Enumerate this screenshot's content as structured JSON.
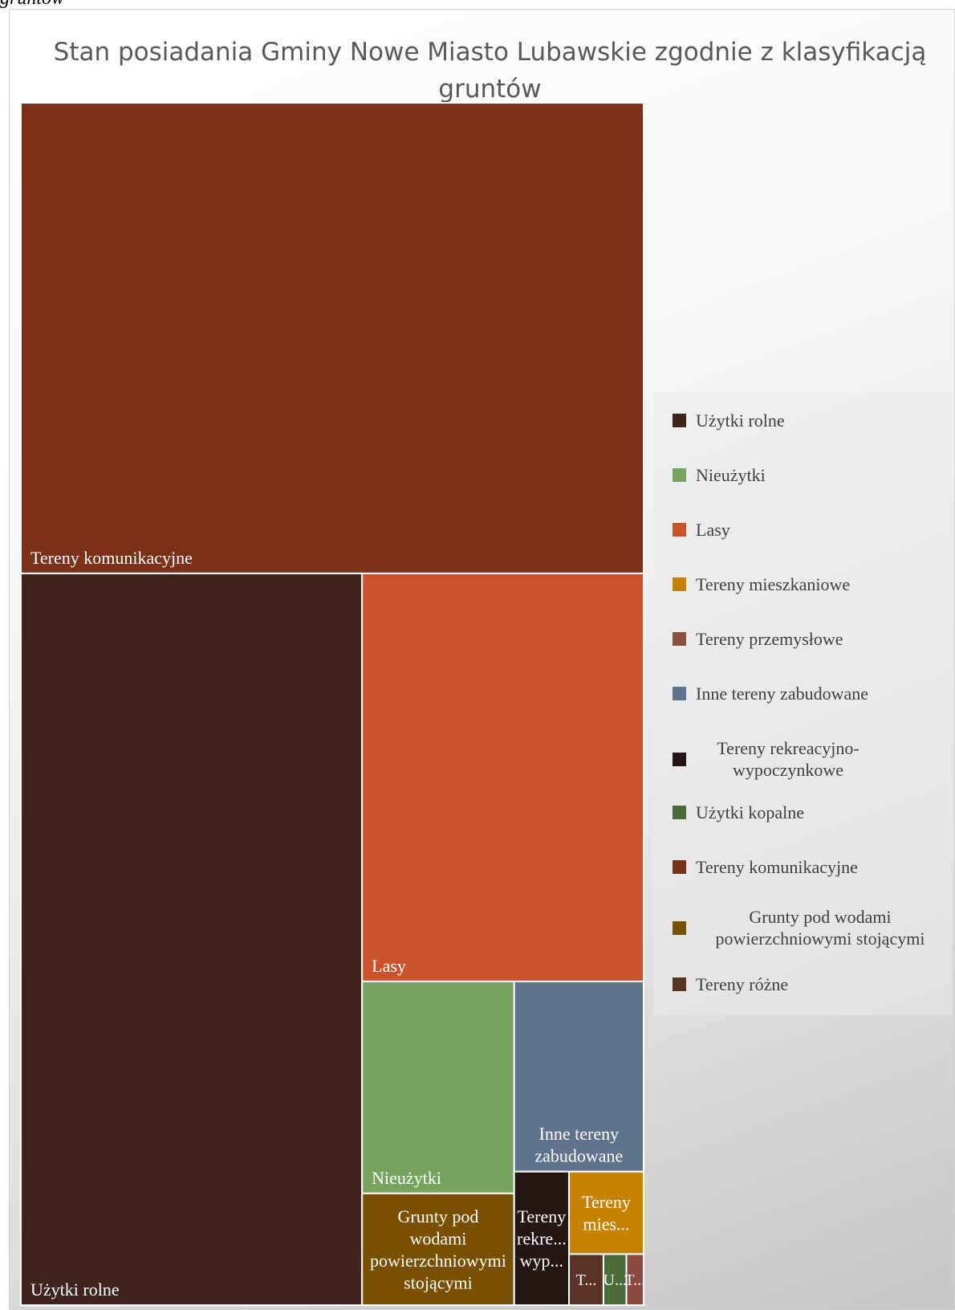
{
  "caption": "gruntów",
  "chart_data": {
    "type": "treemap",
    "title": "Stan posiadania Gminy Nowe Miasto Lubawskie zgodnie z klasyfikacją gruntów",
    "series": [
      {
        "name": "Tereny komunikacyjne",
        "label": "Tereny komunikacyjne",
        "value": 1000,
        "color": "#7B301A"
      },
      {
        "name": "Użytki rolne",
        "label": "Użytki rolne",
        "value": 852,
        "color": "#3F231D"
      },
      {
        "name": "Lasy",
        "label": "Lasy",
        "value": 392,
        "color": "#CB532C"
      },
      {
        "name": "Nieużytki",
        "label": "Nieużytki",
        "value": 110,
        "color": "#76A35E"
      },
      {
        "name": "Grunty pod wodami powierzchniowymi stojącymi",
        "label": "Grunty pod wodami powierzchniowymi stojącymi",
        "value": 58,
        "color": "#785000"
      },
      {
        "name": "Inne tereny zabudowane",
        "label": "Inne tereny zabudowane",
        "value": 84,
        "color": "#60738C"
      },
      {
        "name": "Tereny rekreacyjno-wypoczynkowe",
        "label": "Tereny rekre... wyp...",
        "value": 25,
        "color": "#241613"
      },
      {
        "name": "Tereny mieszkaniowe",
        "label": "Tereny mies...",
        "value": 21,
        "color": "#C78300"
      },
      {
        "name": "Tereny przemysłowe",
        "label": "T...",
        "value": 6,
        "color": "#5A3326"
      },
      {
        "name": "Użytki kopalne",
        "label": "U...",
        "value": 4,
        "color": "#4A6B3A"
      },
      {
        "name": "Tereny różne",
        "label": "T...",
        "value": 3,
        "color": "#8C4A3E"
      }
    ],
    "legend": {
      "position": "right",
      "items": [
        {
          "label": "Użytki rolne",
          "color": "#3F231D"
        },
        {
          "label": "Nieużytki",
          "color": "#76A35E"
        },
        {
          "label": "Lasy",
          "color": "#CB532C"
        },
        {
          "label": "Tereny mieszkaniowe",
          "color": "#C78300"
        },
        {
          "label": "Tereny przemysłowe",
          "color": "#8B5040"
        },
        {
          "label": "Inne tereny zabudowane",
          "color": "#60738C"
        },
        {
          "label": "Tereny rekreacyjno-wypoczynkowe",
          "color": "#241613"
        },
        {
          "label": "Użytki kopalne",
          "color": "#4A6B3A"
        },
        {
          "label": "Tereny komunikacyjne",
          "color": "#7B301A"
        },
        {
          "label": "Grunty pod wodami powierzchniowymi stojącymi",
          "color": "#785000"
        },
        {
          "label": "Tereny różne",
          "color": "#5A3326"
        }
      ]
    }
  }
}
